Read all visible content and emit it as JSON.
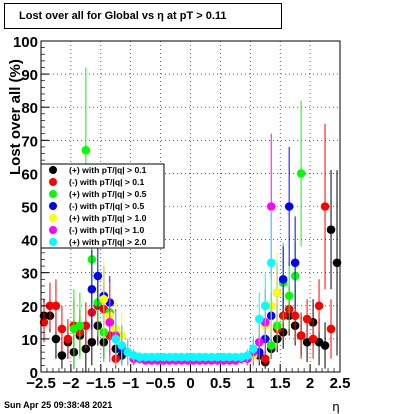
{
  "chart_data": {
    "type": "scatter",
    "title": "Lost over all for Global vs  η at pT > 0.11",
    "xlabel": "η",
    "ylabel": "Lost over all (%)",
    "xlim": [
      -2.5,
      2.5
    ],
    "ylim": [
      0,
      100
    ],
    "grid": true,
    "legend_position": "left",
    "x_ticks": [
      "−2.5",
      "−2",
      "−1.5",
      "−1",
      "−0.5",
      "0",
      "0.5",
      "1",
      "1.5",
      "2",
      "2.5"
    ],
    "y_ticks": [
      "0",
      "10",
      "20",
      "30",
      "40",
      "50",
      "60",
      "70",
      "80",
      "90",
      "100"
    ],
    "series": [
      {
        "name": "(+) with pT/|q| > 0.1",
        "color": "#000000",
        "points": [
          [
            -2.45,
            17,
            5
          ],
          [
            -2.35,
            17,
            5
          ],
          [
            -2.25,
            10,
            6
          ],
          [
            -2.15,
            5,
            4
          ],
          [
            -2.05,
            9,
            5
          ],
          [
            -1.95,
            6,
            5
          ],
          [
            -1.85,
            11,
            6
          ],
          [
            -1.75,
            7,
            8
          ],
          [
            -1.65,
            9,
            7
          ],
          [
            -1.55,
            14,
            6
          ],
          [
            -1.45,
            9,
            5
          ],
          [
            -1.35,
            15,
            6
          ],
          [
            -1.25,
            7,
            4
          ],
          [
            -1.15,
            5,
            3
          ],
          [
            1.15,
            5,
            3
          ],
          [
            1.25,
            3,
            2
          ],
          [
            1.35,
            7,
            3
          ],
          [
            1.45,
            10,
            4
          ],
          [
            1.55,
            12,
            5
          ],
          [
            1.65,
            17,
            6
          ],
          [
            1.75,
            14,
            6
          ],
          [
            1.85,
            11,
            6
          ],
          [
            1.95,
            9,
            6
          ],
          [
            2.05,
            15,
            7
          ],
          [
            2.15,
            9,
            7
          ],
          [
            2.25,
            8,
            7
          ],
          [
            2.35,
            43,
            18
          ],
          [
            2.45,
            33,
            28
          ]
        ]
      },
      {
        "name": "(-) with pT/|q| > 0.1",
        "color": "#ff0000",
        "points": [
          [
            -2.45,
            15,
            6
          ],
          [
            -2.35,
            20,
            7
          ],
          [
            -2.25,
            20,
            8
          ],
          [
            -2.15,
            13,
            7
          ],
          [
            -2.05,
            10,
            6
          ],
          [
            -1.95,
            14,
            8
          ],
          [
            -1.85,
            12,
            7
          ],
          [
            -1.75,
            14,
            7
          ],
          [
            -1.65,
            18,
            8
          ],
          [
            -1.55,
            20,
            9
          ],
          [
            -1.45,
            19,
            8
          ],
          [
            -1.35,
            11,
            6
          ],
          [
            -1.25,
            4,
            3
          ],
          [
            1.25,
            4,
            3
          ],
          [
            1.35,
            8,
            4
          ],
          [
            1.45,
            13,
            6
          ],
          [
            1.55,
            17,
            7
          ],
          [
            1.65,
            19,
            7
          ],
          [
            1.75,
            17,
            8
          ],
          [
            1.85,
            11,
            7
          ],
          [
            1.95,
            16,
            6
          ],
          [
            2.05,
            10,
            6
          ],
          [
            2.15,
            20,
            8
          ],
          [
            2.25,
            50,
            25
          ],
          [
            2.35,
            13,
            9
          ]
        ]
      },
      {
        "name": "(+) with pT/|q| > 0.5",
        "color": "#00ff00",
        "points": [
          [
            -1.95,
            13,
            12
          ],
          [
            -1.85,
            14,
            10
          ],
          [
            -1.75,
            67,
            25
          ],
          [
            -1.65,
            34,
            16
          ],
          [
            -1.55,
            21,
            10
          ],
          [
            -1.45,
            12,
            9
          ],
          [
            -1.35,
            18,
            8
          ],
          [
            1.35,
            8,
            4
          ],
          [
            1.45,
            14,
            6
          ],
          [
            1.55,
            27,
            12
          ],
          [
            1.65,
            23,
            10
          ],
          [
            1.75,
            29,
            10
          ],
          [
            1.85,
            60,
            22
          ]
        ]
      },
      {
        "name": "(-) with pT/|q| > 0.5",
        "color": "#0000ff",
        "points": [
          [
            -1.65,
            25,
            12
          ],
          [
            -1.55,
            29,
            10
          ],
          [
            -1.45,
            23,
            9
          ],
          [
            -1.35,
            21,
            8
          ],
          [
            -1.25,
            10,
            5
          ],
          [
            -1.15,
            7,
            4
          ],
          [
            1.15,
            6,
            3
          ],
          [
            1.25,
            10,
            5
          ],
          [
            1.35,
            17,
            7
          ],
          [
            1.45,
            24,
            9
          ],
          [
            1.55,
            28,
            10
          ],
          [
            1.65,
            50,
            18
          ],
          [
            1.75,
            33,
            14
          ]
        ]
      },
      {
        "name": "(+) with pT/|q| > 1.0",
        "color": "#ffff00",
        "points": [
          [
            -1.45,
            22,
            12
          ],
          [
            -1.35,
            17,
            10
          ],
          [
            -1.25,
            13,
            9
          ],
          [
            -1.15,
            11,
            7
          ],
          [
            -1.05,
            6,
            4
          ],
          [
            1.05,
            5,
            4
          ],
          [
            1.15,
            9,
            6
          ],
          [
            1.25,
            14,
            8
          ],
          [
            1.35,
            20,
            10
          ],
          [
            1.45,
            24,
            12
          ]
        ]
      },
      {
        "name": "(-) with pT/|q| > 1.0",
        "color": "#ff00ff",
        "points": [
          [
            -1.35,
            15,
            12
          ],
          [
            -1.25,
            11,
            8
          ],
          [
            -1.15,
            8,
            6
          ],
          [
            -1.05,
            6,
            4
          ],
          [
            -0.95,
            4,
            2
          ],
          [
            -0.85,
            4,
            1.5
          ],
          [
            -0.75,
            3.5,
            1.2
          ],
          [
            -0.65,
            3.5,
            1
          ],
          [
            -0.55,
            3.5,
            1
          ],
          [
            -0.45,
            3.5,
            1
          ],
          [
            -0.35,
            3.5,
            1
          ],
          [
            -0.25,
            3.5,
            1
          ],
          [
            -0.15,
            3.5,
            1
          ],
          [
            -0.05,
            3.5,
            1
          ],
          [
            0.05,
            3.5,
            1
          ],
          [
            0.15,
            3.5,
            1
          ],
          [
            0.25,
            3.5,
            1
          ],
          [
            0.35,
            3.5,
            1
          ],
          [
            0.45,
            3.5,
            1
          ],
          [
            0.55,
            3.5,
            1
          ],
          [
            0.65,
            3.5,
            1
          ],
          [
            0.75,
            3.5,
            1.2
          ],
          [
            0.85,
            4,
            1.5
          ],
          [
            0.95,
            4,
            2
          ],
          [
            1.05,
            6,
            4
          ],
          [
            1.15,
            9,
            6
          ],
          [
            1.25,
            15,
            10
          ],
          [
            1.35,
            50,
            22
          ]
        ]
      },
      {
        "name": "(+) with pT/|q| > 2.0",
        "color": "#00ffff",
        "points": [
          [
            -1.25,
            10,
            8
          ],
          [
            -1.15,
            8,
            6
          ],
          [
            -1.05,
            6,
            4
          ],
          [
            -0.95,
            5,
            2
          ],
          [
            -0.85,
            4.5,
            1.5
          ],
          [
            -0.75,
            4.5,
            1.2
          ],
          [
            -0.65,
            4.5,
            1
          ],
          [
            -0.55,
            4.5,
            1
          ],
          [
            -0.45,
            4.5,
            1
          ],
          [
            -0.35,
            4.5,
            1
          ],
          [
            -0.25,
            4.5,
            1
          ],
          [
            -0.15,
            4.5,
            1
          ],
          [
            -0.05,
            4.5,
            1
          ],
          [
            0.05,
            4.5,
            1
          ],
          [
            0.15,
            4.5,
            1
          ],
          [
            0.25,
            4.5,
            1
          ],
          [
            0.35,
            4.5,
            1
          ],
          [
            0.45,
            4.5,
            1
          ],
          [
            0.55,
            4.5,
            1
          ],
          [
            0.65,
            4.5,
            1
          ],
          [
            0.75,
            4.5,
            1.2
          ],
          [
            0.85,
            4.5,
            1.5
          ],
          [
            0.95,
            5,
            2
          ],
          [
            1.05,
            7,
            4
          ],
          [
            1.15,
            16,
            8
          ],
          [
            1.25,
            20,
            10
          ],
          [
            1.35,
            33,
            16
          ]
        ]
      }
    ]
  },
  "footer": {
    "timestamp": "Sun Apr 25 09:38:48 2021"
  }
}
